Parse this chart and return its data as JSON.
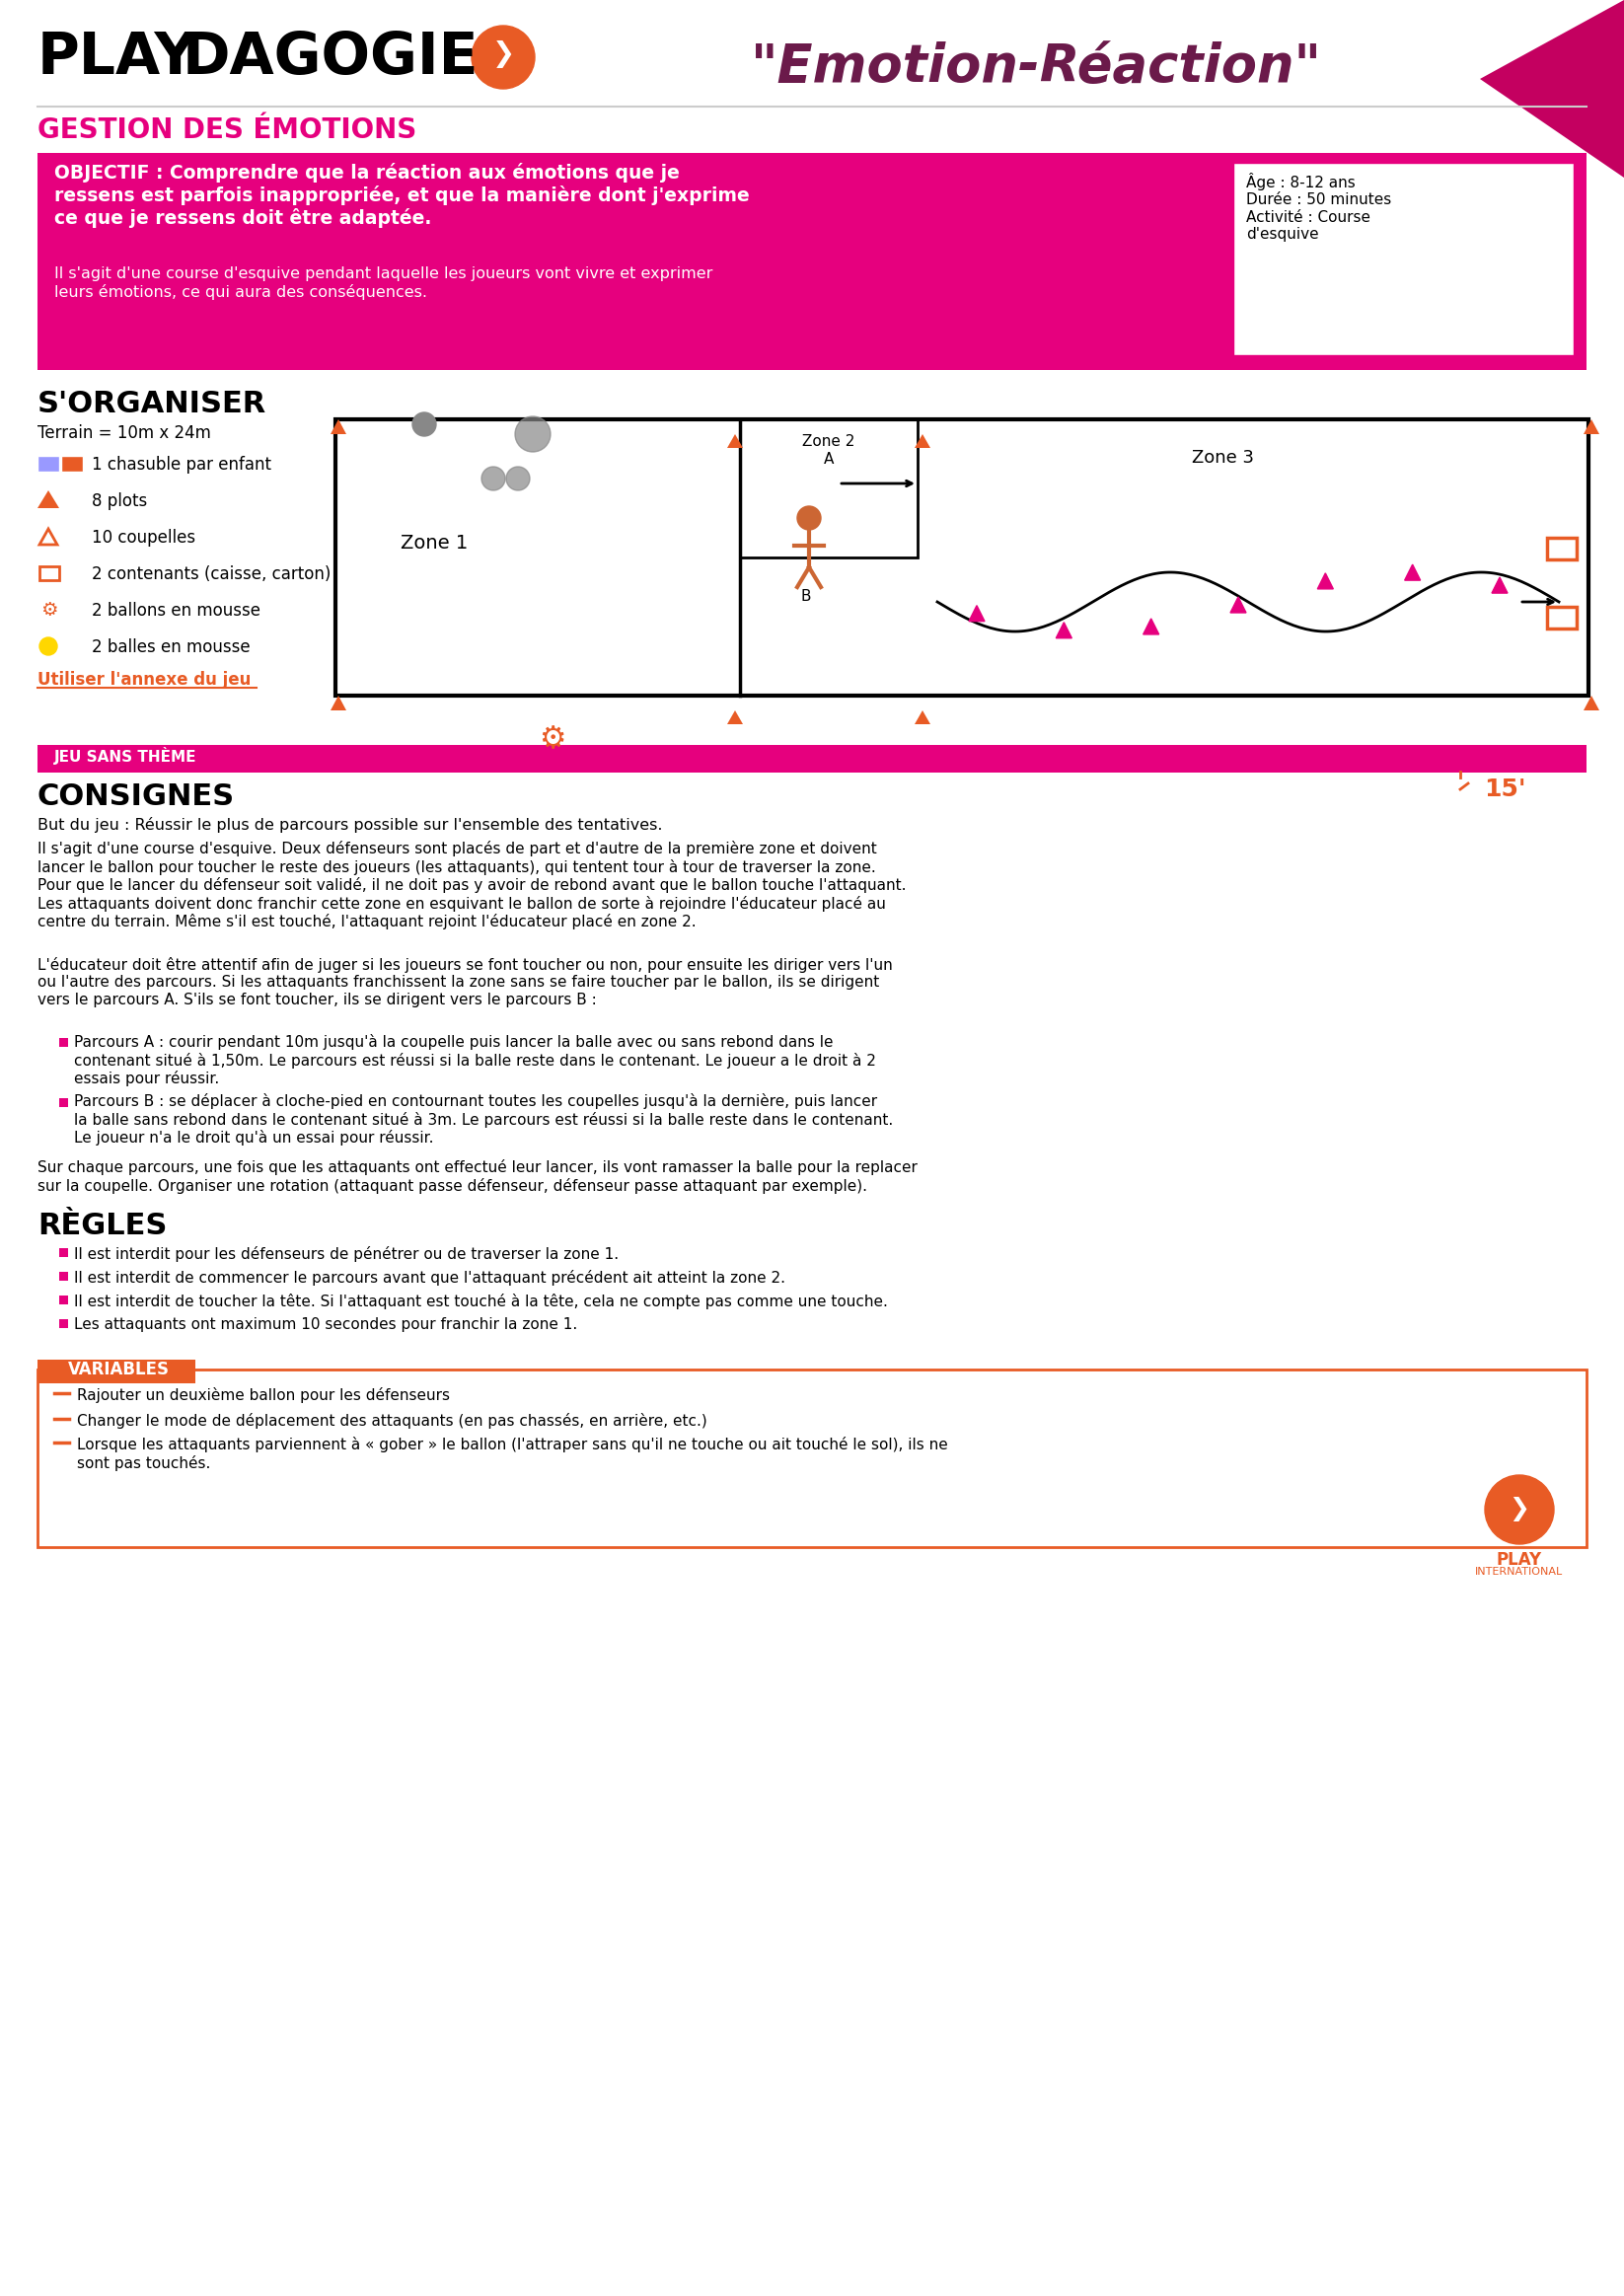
{
  "title_play": "PLAY",
  "title_dagogie": "DAGOGIE",
  "title_emotion": "\"Emotion-Réaction\"",
  "subtitle_gestion": "GESTION DES ÉMOTIONS",
  "objectif_bold": "OBJECTIF : Comprendre que la réaction aux émotions que je\nressens est parfois inappropriée, et que la manière dont j'exprime\nce que je ressens doit être adaptée.",
  "objectif_normal": "Il s'agit d'une course d'esquive pendant laquelle les joueurs vont vivre et exprimer\nleurs émotions, ce qui aura des conséquences.",
  "age_info": "Âge : 8-12 ans\nDurée : 50 minutes\nActivité : Course\nd'esquive",
  "organiser_title": "S'ORGANISER",
  "terrain": "Terrain = 10m x 24m",
  "items": [
    "1 chasuble par enfant",
    "8 plots",
    "10 coupelles",
    "2 contenants (caisse, carton)",
    "2 ballons en mousse",
    "2 balles en mousse"
  ],
  "annexe_text": "Utiliser l'annexe du jeu",
  "jeu_label": "JEU SANS THÈME",
  "consignes_title": "CONSIGNES",
  "time_label": "15'",
  "but_text": "But du jeu : Réussir le plus de parcours possible sur l'ensemble des tentatives.",
  "consignes_para1": "Il s'agit d'une course d'esquive. Deux défenseurs sont placés de part et d'autre de la première zone et doivent\nlancer le ballon pour toucher le reste des joueurs (les attaquants), qui tentent tour à tour de traverser la zone.\nPour que le lancer du défenseur soit validé, il ne doit pas y avoir de rebond avant que le ballon touche l'attaquant.\nLes attaquants doivent donc franchir cette zone en esquivant le ballon de sorte à rejoindre l'éducateur placé au\ncentre du terrain. Même s'il est touché, l'attaquant rejoint l'éducateur placé en zone 2.",
  "consignes_para2": "L'éducateur doit être attentif afin de juger si les joueurs se font toucher ou non, pour ensuite les diriger vers l'un\nou l'autre des parcours. Si les attaquants franchissent la zone sans se faire toucher par le ballon, ils se dirigent\nvers le parcours A. S'ils se font toucher, ils se dirigent vers le parcours B :",
  "bullet_A": "Parcours A : courir pendant 10m jusqu'à la coupelle puis lancer la balle avec ou sans rebond dans le\ncontenant situé à 1,50m. Le parcours est réussi si la balle reste dans le contenant. Le joueur a le droit à 2\nessais pour réussir.",
  "bullet_B": "Parcours B : se déplacer à cloche-pied en contournant toutes les coupelles jusqu'à la dernière, puis lancer\nla balle sans rebond dans le contenant situé à 3m. Le parcours est réussi si la balle reste dans le contenant.\nLe joueur n'a le droit qu'à un essai pour réussir.",
  "consignes_para3": "Sur chaque parcours, une fois que les attaquants ont effectué leur lancer, ils vont ramasser la balle pour la replacer\nsur la coupelle. Organiser une rotation (attaquant passe défenseur, défenseur passe attaquant par exemple).",
  "regles_title": "RÈGLES",
  "regles_bullets": [
    "Il est interdit pour les défenseurs de pénétrer ou de traverser la zone 1.",
    "Il est interdit de commencer le parcours avant que l'attaquant précédent ait atteint la zone 2.",
    "Il est interdit de toucher la tête. Si l'attaquant est touché à la tête, cela ne compte pas comme une touche.",
    "Les attaquants ont maximum 10 secondes pour franchir la zone 1."
  ],
  "variables_title": "VARIABLES",
  "variables_bullets": [
    "Rajouter un deuxième ballon pour les défenseurs",
    "Changer le mode de déplacement des attaquants (en pas chassés, en arrière, etc.)",
    "Lorsque les attaquants parviennent à « gober » le ballon (l'attraper sans qu'il ne touche ou ait touché le sol), ils ne\nsont pas touchés."
  ],
  "color_pink": "#E6007E",
  "color_dark_pink": "#C40060",
  "color_magenta": "#E6007E",
  "color_purple": "#6B1A4A",
  "color_orange": "#E85B25",
  "color_orange2": "#F07030",
  "color_light_gray": "#F0F0F0",
  "color_gray_border": "#CCCCCC",
  "color_white": "#FFFFFF",
  "color_black": "#000000",
  "color_dark_gray": "#333333",
  "color_medium_gray": "#666666"
}
